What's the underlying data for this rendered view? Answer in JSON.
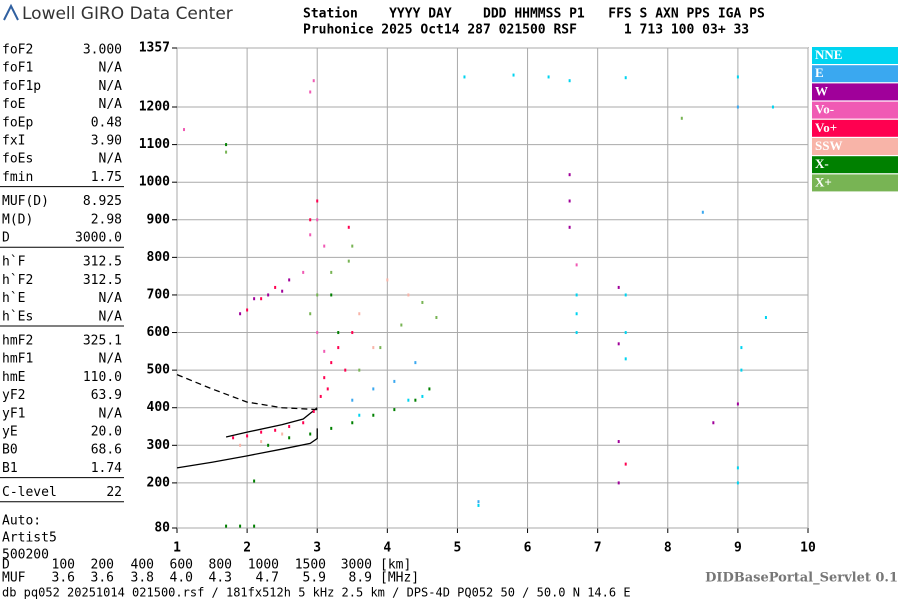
{
  "header": {
    "logo": "Lowell GIRO Data Center",
    "station_line": "Station    YYYY DAY    DDD HHMMSS P1   FFS S AXN PPS IGA PS",
    "value_line": "Pruhonice 2025 Oct14 287 021500 RSF      1 713 100 03+ 33"
  },
  "params": [
    [
      [
        "foF2",
        "3.000"
      ],
      [
        "foF1",
        "N/A"
      ],
      [
        "foF1p",
        "N/A"
      ],
      [
        "foE",
        "N/A"
      ],
      [
        "foEp",
        "0.48"
      ],
      [
        "fxI",
        "3.90"
      ],
      [
        "foEs",
        "N/A"
      ],
      [
        "fmin",
        "1.75"
      ]
    ],
    [
      [
        "MUF(D)",
        "8.925"
      ],
      [
        "M(D)",
        "2.98"
      ],
      [
        "D",
        "3000.0"
      ]
    ],
    [
      [
        "h`F",
        "312.5"
      ],
      [
        "h`F2",
        "312.5"
      ],
      [
        "h`E",
        "N/A"
      ],
      [
        "h`Es",
        "N/A"
      ]
    ],
    [
      [
        "hmF2",
        "325.1"
      ],
      [
        "hmF1",
        "N/A"
      ],
      [
        "hmE",
        "110.0"
      ],
      [
        "yF2",
        "63.9"
      ],
      [
        "yF1",
        "N/A"
      ],
      [
        "yE",
        "20.0"
      ],
      [
        "B0",
        "68.6"
      ],
      [
        "B1",
        "1.74"
      ]
    ],
    [
      [
        "C-level",
        "22"
      ]
    ]
  ],
  "auto": [
    "Auto:",
    "Artist5",
    "500200"
  ],
  "muf_table": [
    {
      "label": "D",
      "values": [
        "100",
        "200",
        "400",
        "600",
        "800",
        "1000",
        "1500",
        "3000"
      ],
      "unit": "[km]"
    },
    {
      "label": "MUF",
      "values": [
        "3.6",
        "3.6",
        "3.8",
        "4.0",
        "4.3",
        "4.7",
        "5.9",
        "8.9"
      ],
      "unit": "[MHz]"
    }
  ],
  "servlet": "DIDBasePortal_Servlet 0.1",
  "footer": "db pq052 20251014 021500.rsf / 181fx512h 5 kHz 2.5 km / DPS-4D PQ052 50 / 50.0 N 14.6 E",
  "chart_data": {
    "type": "scatter",
    "xlim": [
      1,
      10
    ],
    "ylim": [
      80,
      1357
    ],
    "xticks": [
      1,
      2,
      3,
      4,
      5,
      6,
      7,
      8,
      9,
      10
    ],
    "yticks": [
      80,
      200,
      300,
      400,
      500,
      600,
      700,
      800,
      900,
      1000,
      1100,
      1200,
      1357
    ],
    "grid": true,
    "series": [
      {
        "name": "NNE",
        "color": "#00d4f0",
        "x": [
          5.1,
          5.8,
          6.3,
          6.6,
          7.4,
          9.0,
          6.7,
          6.7,
          6.7,
          7.4,
          7.4,
          7.4,
          4.5,
          4.3,
          3.6,
          5.3,
          9.0,
          9.0,
          9.5,
          9.4,
          9.05,
          9.05
        ],
        "y": [
          1280,
          1285,
          1280,
          1270,
          1278,
          1280,
          700,
          650,
          600,
          700,
          600,
          530,
          430,
          420,
          380,
          140,
          200,
          240,
          1200,
          640,
          500,
          560
        ]
      },
      {
        "name": "E",
        "color": "#3aa8f0",
        "x": [
          3.8,
          4.1,
          4.4,
          3.5,
          5.3,
          9.0,
          8.5
        ],
        "y": [
          450,
          470,
          520,
          420,
          150,
          1200,
          920
        ]
      },
      {
        "name": "W",
        "color": "#a0009a",
        "x": [
          1.9,
          2.1,
          2.3,
          2.5,
          2.6,
          6.6,
          6.6,
          7.3,
          7.3,
          7.3,
          7.3,
          8.65,
          6.6,
          9.0
        ],
        "y": [
          650,
          690,
          700,
          710,
          740,
          950,
          880,
          720,
          570,
          310,
          200,
          360,
          1020,
          410
        ]
      },
      {
        "name": "Vo-",
        "color": "#f05ab4",
        "x": [
          2.9,
          2.95,
          2.9,
          3.0,
          3.1,
          1.1,
          2.8,
          3.0,
          3.1,
          6.7
        ],
        "y": [
          1240,
          1270,
          860,
          900,
          830,
          1140,
          760,
          600,
          550,
          780
        ]
      },
      {
        "name": "Vo+",
        "color": "#ff0050",
        "x": [
          1.8,
          2.0,
          2.2,
          2.4,
          2.6,
          2.8,
          2.95,
          3.05,
          3.1,
          3.2,
          3.3,
          3.5,
          3.15,
          3.4,
          2.0,
          2.2,
          2.4,
          2.9,
          3.0,
          3.45,
          7.4
        ],
        "y": [
          320,
          325,
          335,
          340,
          350,
          360,
          390,
          430,
          480,
          520,
          560,
          600,
          450,
          500,
          660,
          690,
          720,
          900,
          950,
          880,
          250
        ]
      },
      {
        "name": "SSW",
        "color": "#f8b4a8",
        "x": [
          1.9,
          2.2,
          2.5,
          3.6,
          4.0,
          4.3,
          3.8
        ],
        "y": [
          300,
          310,
          330,
          650,
          740,
          700,
          560
        ]
      },
      {
        "name": "X-",
        "color": "#008000",
        "x": [
          1.7,
          1.9,
          2.1,
          2.3,
          2.6,
          2.9,
          3.2,
          3.5,
          3.8,
          4.1,
          4.4,
          4.6,
          3.3,
          3.2,
          1.7,
          2.1
        ],
        "y": [
          85,
          85,
          85,
          300,
          320,
          330,
          345,
          360,
          380,
          395,
          420,
          450,
          600,
          700,
          1100,
          205
        ]
      },
      {
        "name": "X+",
        "color": "#78b454",
        "x": [
          3.0,
          3.2,
          3.5,
          2.9,
          3.6,
          3.9,
          4.2,
          4.5,
          4.7,
          1.7,
          8.2,
          3.45
        ],
        "y": [
          700,
          760,
          830,
          650,
          500,
          560,
          620,
          680,
          640,
          1080,
          1170,
          790
        ]
      }
    ],
    "lines": [
      {
        "style": "solid",
        "color": "#000000",
        "x": [
          1,
          1.5,
          2,
          2.5,
          2.9,
          3,
          3
        ],
        "y": [
          240,
          255,
          272,
          290,
          305,
          318,
          345
        ]
      },
      {
        "style": "solid",
        "color": "#000000",
        "x": [
          1.7,
          2,
          2.5,
          2.8,
          3
        ],
        "y": [
          322,
          335,
          355,
          370,
          400
        ]
      },
      {
        "style": "dashed",
        "color": "#000000",
        "x": [
          1,
          1.5,
          2,
          2.5,
          3
        ],
        "y": [
          488,
          450,
          415,
          400,
          395
        ]
      }
    ]
  }
}
